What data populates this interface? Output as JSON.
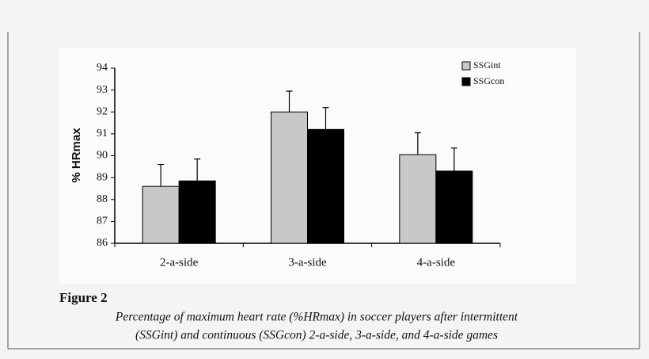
{
  "chart_data": {
    "type": "bar",
    "ylabel": "% HRmax",
    "categories": [
      "2-a-side",
      "3-a-side",
      "4-a-side"
    ],
    "series": [
      {
        "name": "SSGint",
        "color": "#c8c8c8",
        "values": [
          88.6,
          92.0,
          90.05
        ],
        "errors": [
          1.0,
          0.95,
          1.0
        ]
      },
      {
        "name": "SSGcon",
        "color": "#000000",
        "values": [
          88.85,
          91.2,
          89.3
        ],
        "errors": [
          1.0,
          1.0,
          1.05
        ]
      }
    ],
    "ylim": [
      86,
      94
    ],
    "yticks": [
      86,
      87,
      88,
      89,
      90,
      91,
      92,
      93,
      94
    ],
    "grid": false,
    "legend": "upper right"
  },
  "figure": {
    "label": "Figure 2",
    "caption": [
      "Percentage of maximum heart rate (%HRmax) in soccer players after intermittent",
      "(SSGint) and continuous (SSGcon) 2-a-side, 3-a-side, and 4-a-side games"
    ]
  }
}
